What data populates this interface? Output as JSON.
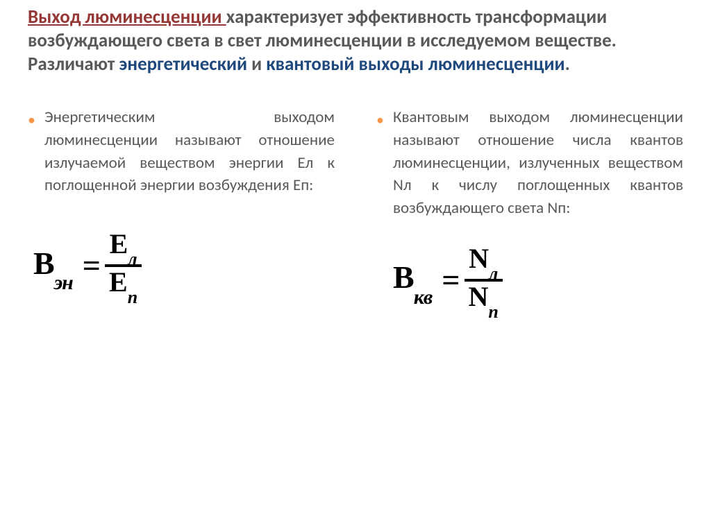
{
  "title": {
    "part1": "Выход люминесценции ",
    "part2": "характеризует эффективность трансформации возбуждающего света в свет люминесценции в исследуемом веществе. Различают ",
    "part3": "энергетический",
    "part4": " и ",
    "part5": "квантовый выходы люминесценции",
    "part6": ".",
    "colors": {
      "red": "#953735",
      "gray": "#595959",
      "blue": "#1f497d"
    },
    "fontsize": 27
  },
  "bullet_color": "#f79646",
  "body_text_color": "#595959",
  "body_fontsize": 23,
  "left": {
    "text": "Энергетическим выходом люминесценции называют отношение излучаемой веществом энергии Ел к поглощенной энергии возбуждения Еп:",
    "formula": {
      "lhs_base": "B",
      "lhs_sub": "эн",
      "num_base": "E",
      "num_sub": "л",
      "den_base": "E",
      "den_sub": "п"
    }
  },
  "right": {
    "text": "Квантовым выходом люминесценции называют отношение числа квантов люминесценции, излученных веществом Nл к числу поглощенных квантов возбуждающего света Nп:",
    "formula": {
      "lhs_base": "B",
      "lhs_sub": "кв",
      "num_base": "N",
      "num_sub": "л",
      "den_base": "N",
      "den_sub": "п"
    }
  },
  "formula_style": {
    "color": "#000000",
    "base_fontsize": 46,
    "sub_fontsize": 30,
    "frac_fontsize": 40,
    "frac_sub_fontsize": 26,
    "bar_thickness": 4
  }
}
